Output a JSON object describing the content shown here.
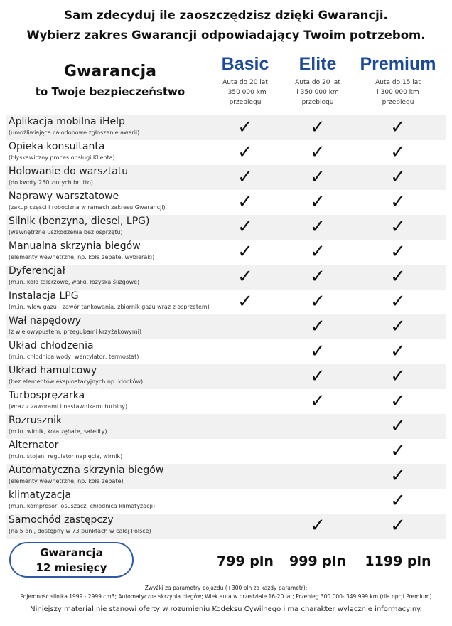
{
  "header": {
    "line1": "Sam zdecyduj ile zaoszczędzisz dzięki Gwarancji.",
    "line2": "Wybierz zakres Gwarancji odpowiadający Twoim potrzebom."
  },
  "title": {
    "main": "Gwarancja",
    "sub": "to Twoje bezpieczeństwo"
  },
  "plans": [
    {
      "name": "Basic",
      "desc": [
        "Auta do 20 lat",
        "i 350 000 km",
        "przebiegu"
      ],
      "price": "799 pln"
    },
    {
      "name": "Elite",
      "desc": [
        "Auta do 20 lat",
        "i 350 000 km",
        "przebiegu"
      ],
      "price": "999 pln"
    },
    {
      "name": "Premium",
      "desc": [
        "Auta do 15 lat",
        "i 300 000 km",
        "przebiegu"
      ],
      "price": "1199 pln"
    }
  ],
  "check_icon": "checkmark-icon",
  "rows": [
    {
      "title": "Aplikacja mobilna iHelp",
      "sub": "(umożliwiająca całodobowe zgłoszenie awarii)",
      "checks": [
        true,
        true,
        true
      ]
    },
    {
      "title": "Opieka konsultanta",
      "sub": "(błyskawiczny proces obsługi Klienta)",
      "checks": [
        true,
        true,
        true
      ]
    },
    {
      "title": "Holowanie do warsztatu",
      "sub": "(do kwoty 250 złotych brutto)",
      "checks": [
        true,
        true,
        true
      ]
    },
    {
      "title": "Naprawy warsztatowe",
      "sub": "(zakup części i robocizna w ramach zakresu Gwarancji)",
      "checks": [
        true,
        true,
        true
      ]
    },
    {
      "title": "Silnik (benzyna, diesel, LPG)",
      "sub": "(wewnętrzne uszkodzenia bez osprzętu)",
      "checks": [
        true,
        true,
        true
      ]
    },
    {
      "title": "Manualna skrzynia biegów",
      "sub": "(elementy wewnętrzne, np. koła zębate, wybieraki)",
      "checks": [
        true,
        true,
        true
      ]
    },
    {
      "title": "Dyferencjał",
      "sub": "(m.in. koła talerzowe, wałki, łożyska ślizgowe)",
      "checks": [
        true,
        true,
        true
      ]
    },
    {
      "title": "Instalacja LPG",
      "sub": "(m.in. wlew gazu - zawór tankowania, zbiornik gazu wraz z osprzętem)",
      "checks": [
        true,
        true,
        true
      ]
    },
    {
      "title": "Wał napędowy",
      "sub": "(z wielowypustem, przegubami krzyżakowymi)",
      "checks": [
        false,
        true,
        true
      ]
    },
    {
      "title": "Układ chłodzenia",
      "sub": "(m.in. chłodnica wody, wentylator, termostat)",
      "checks": [
        false,
        true,
        true
      ]
    },
    {
      "title": "Układ hamulcowy",
      "sub": "(bez elementów eksploatacyjnych  np. klocków)",
      "checks": [
        false,
        true,
        true
      ]
    },
    {
      "title": "Turbosprężarka",
      "sub": "(wraz z zaworami i nastawnikami turbiny)",
      "checks": [
        false,
        true,
        true
      ]
    },
    {
      "title": "Rozrusznik",
      "sub": "(m.in. wirnik, koła zębate, satelity)",
      "checks": [
        false,
        false,
        true
      ]
    },
    {
      "title": "Alternator",
      "sub": "(m.in. stojan, regulator napięcia, wirnik)",
      "checks": [
        false,
        false,
        true
      ]
    },
    {
      "title": "Automatyczna skrzynia biegów",
      "sub": "(elementy wewnętrzne, np. koła zębate)",
      "checks": [
        false,
        false,
        true
      ]
    },
    {
      "title": "klimatyzacja",
      "sub": "(m.in. kompresor, osuszacz, chłodnica klimatyzacji)",
      "checks": [
        false,
        false,
        true
      ]
    },
    {
      "title": "Samochód zastępczy",
      "sub": "(na 5 dni, dostępny w 73 punktach w całej Polsce)",
      "checks": [
        false,
        true,
        true
      ]
    }
  ],
  "period": {
    "line1": "Gwarancja",
    "line2": "12 miesięcy"
  },
  "footer": {
    "surcharge_title": "Zwyżki za parametry pojazdu (+300 pln za każdy parametr):",
    "surcharge_list": "Pojemność silnika 1999 - 2999 cm3; Automatyczna skrzynia biegów; Wiek auta w przedziale 16-20 lat;  Przebieg 300 000- 349 999 km (dla opcji Premium)",
    "disclaimer": "Niniejszy materiał nie stanowi oferty w rozumieniu Kodeksu Cywilnego i ma charakter wyłącznie informacyjny."
  }
}
